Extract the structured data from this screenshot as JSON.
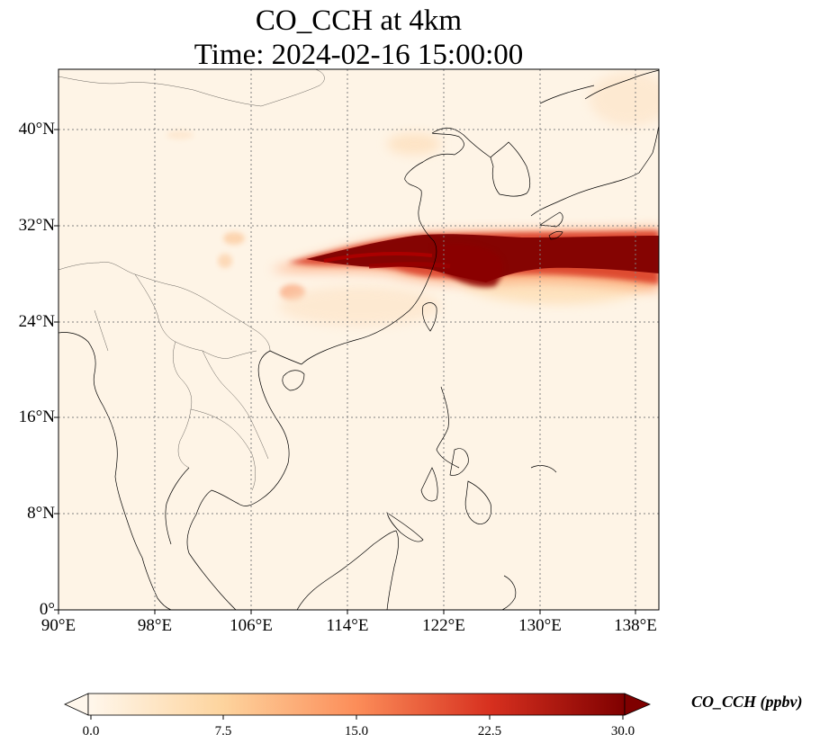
{
  "title": {
    "line1": "CO_CCH at 4km",
    "line2": "Time: 2024-02-16 15:00:00"
  },
  "map": {
    "projection": "PlateCarree",
    "lon_range": [
      90,
      139
    ],
    "lat_range": [
      0,
      45
    ],
    "gridlines": "dotted",
    "x_ticks": [
      "90°E",
      "98°E",
      "106°E",
      "114°E",
      "122°E",
      "130°E",
      "138°E"
    ],
    "y_ticks": [
      "0°",
      "8°N",
      "16°N",
      "24°N",
      "32°N",
      "40°N"
    ]
  },
  "colorbar": {
    "label": "CO_CCH (ppbv)",
    "ticks": [
      "0.0",
      "7.5",
      "15.0",
      "22.5",
      "30.0"
    ],
    "range": [
      0,
      30
    ],
    "extend": "both",
    "colormap": "OrRd"
  },
  "colors": {
    "background": "#fef4e6",
    "plume_high": "#7f0000",
    "plume_mid": "#d7301f",
    "plume_low": "#fc8d59",
    "coast": "#000000"
  }
}
